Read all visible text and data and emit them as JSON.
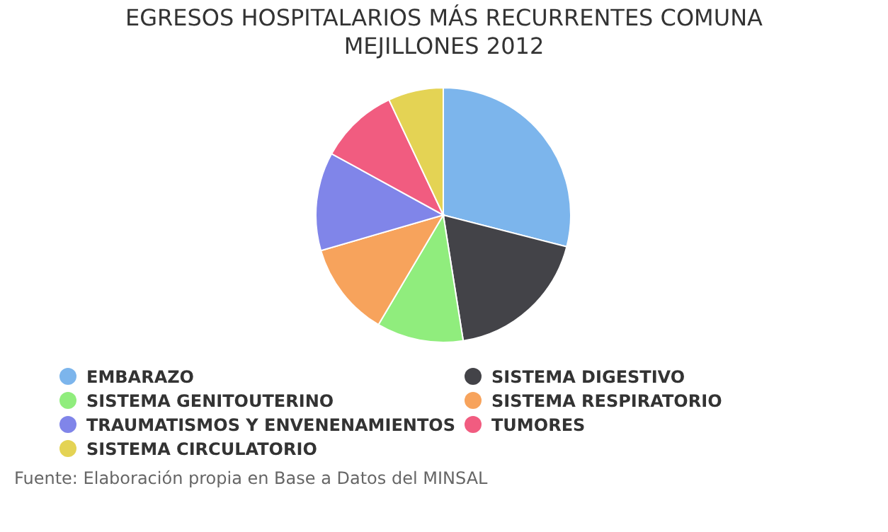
{
  "chart_data": {
    "type": "pie",
    "title": "EGRESOS HOSPITALARIOS MÁS RECURRENTES COMUNA\nMEJILLONES 2012",
    "categories": [
      "EMBARAZO",
      "SISTEMA DIGESTIVO",
      "SISTEMA GENITOUTERINO",
      "SISTEMA RESPIRATORIO",
      "TRAUMATISMOS Y ENVENENAMIENTOS",
      "TUMORES",
      "SISTEMA CIRCULATORIO"
    ],
    "values": [
      29,
      18.5,
      11,
      12,
      12.5,
      10,
      7
    ],
    "colors": [
      "#7cb5ec",
      "#434348",
      "#90ed7d",
      "#f7a35c",
      "#8085e9",
      "#f15c80",
      "#e4d354"
    ],
    "legend": "bottom",
    "annotations": [
      "Fuente: Elaboración propia en Base a Datos del MINSAL"
    ]
  }
}
